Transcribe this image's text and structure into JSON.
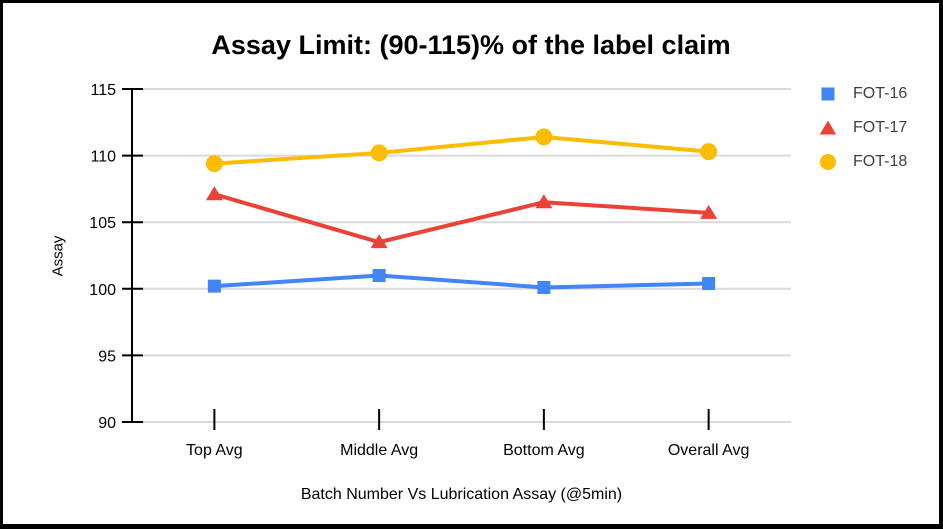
{
  "chart_data": {
    "type": "line",
    "title": "Assay Limit: (90-115)% of the label claim",
    "xlabel": "Batch Number Vs Lubrication Assay (@5min)",
    "ylabel": "Assay",
    "categories": [
      "Top Avg",
      "Middle Avg",
      "Bottom Avg",
      "Overall Avg"
    ],
    "ylim": [
      90,
      115
    ],
    "yticks": [
      90,
      95,
      100,
      105,
      110,
      115
    ],
    "grid": true,
    "legend_position": "right",
    "series": [
      {
        "name": "FOT-16",
        "marker": "square",
        "color": "#4285f4",
        "values": [
          100.2,
          101.0,
          100.1,
          100.4
        ]
      },
      {
        "name": "FOT-17",
        "marker": "triangle",
        "color": "#ea4335",
        "values": [
          107.1,
          103.5,
          106.5,
          105.7
        ]
      },
      {
        "name": "FOT-18",
        "marker": "circle",
        "color": "#fbbc04",
        "values": [
          109.4,
          110.2,
          111.4,
          110.3
        ]
      }
    ],
    "colors": {
      "gridline": "#dadada",
      "axis": "#000000",
      "tick_label": "#000000",
      "legend_text": "#3c4043"
    }
  }
}
